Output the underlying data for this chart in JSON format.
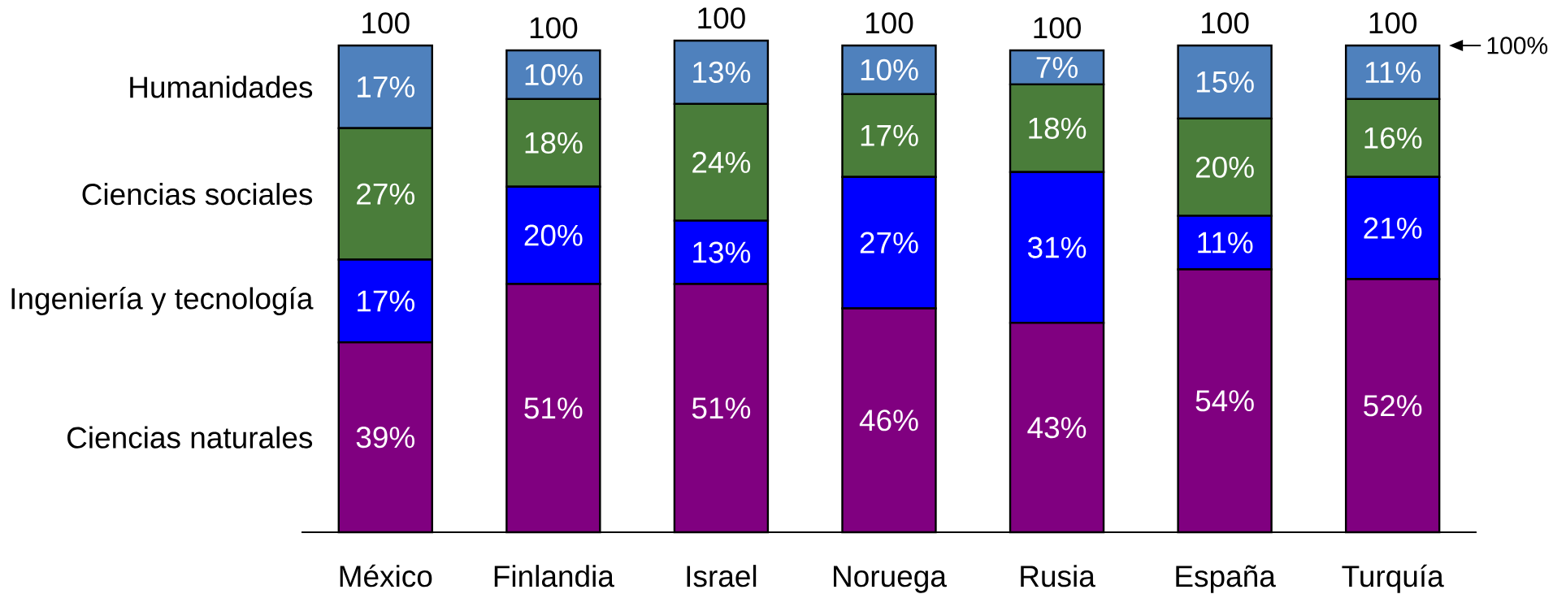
{
  "chart_data": {
    "type": "bar",
    "stacked": true,
    "categories": [
      "México",
      "Finlandia",
      "Israel",
      "Noruega",
      "Rusia",
      "España",
      "Turquía"
    ],
    "series": [
      {
        "name": "Ciencias naturales",
        "color": "#800080",
        "values": [
          39,
          51,
          51,
          46,
          43,
          54,
          52
        ],
        "value_labels": [
          "39%",
          "51%",
          "51%",
          "46%",
          "43%",
          "54%",
          "52%"
        ]
      },
      {
        "name": "Ingeniería y tecnología",
        "color": "#0000ff",
        "values": [
          17,
          20,
          13,
          27,
          31,
          11,
          21
        ],
        "value_labels": [
          "17%",
          "20%",
          "13%",
          "27%",
          "31%",
          "11%",
          "21%"
        ]
      },
      {
        "name": "Ciencias sociales",
        "color": "#4a7d3a",
        "values": [
          27,
          18,
          24,
          17,
          18,
          20,
          16
        ],
        "value_labels": [
          "27%",
          "18%",
          "24%",
          "17%",
          "18%",
          "20%",
          "16%"
        ]
      },
      {
        "name": "Humanidades",
        "color": "#4f81bd",
        "values": [
          17,
          10,
          13,
          10,
          7,
          15,
          11
        ],
        "value_labels": [
          "17%",
          "10%",
          "13%",
          "10%",
          "7%",
          "15%",
          "11%"
        ]
      }
    ],
    "totals": [
      "100",
      "100",
      "100",
      "100",
      "100",
      "100",
      "100"
    ],
    "annotations": [
      "100%"
    ]
  }
}
